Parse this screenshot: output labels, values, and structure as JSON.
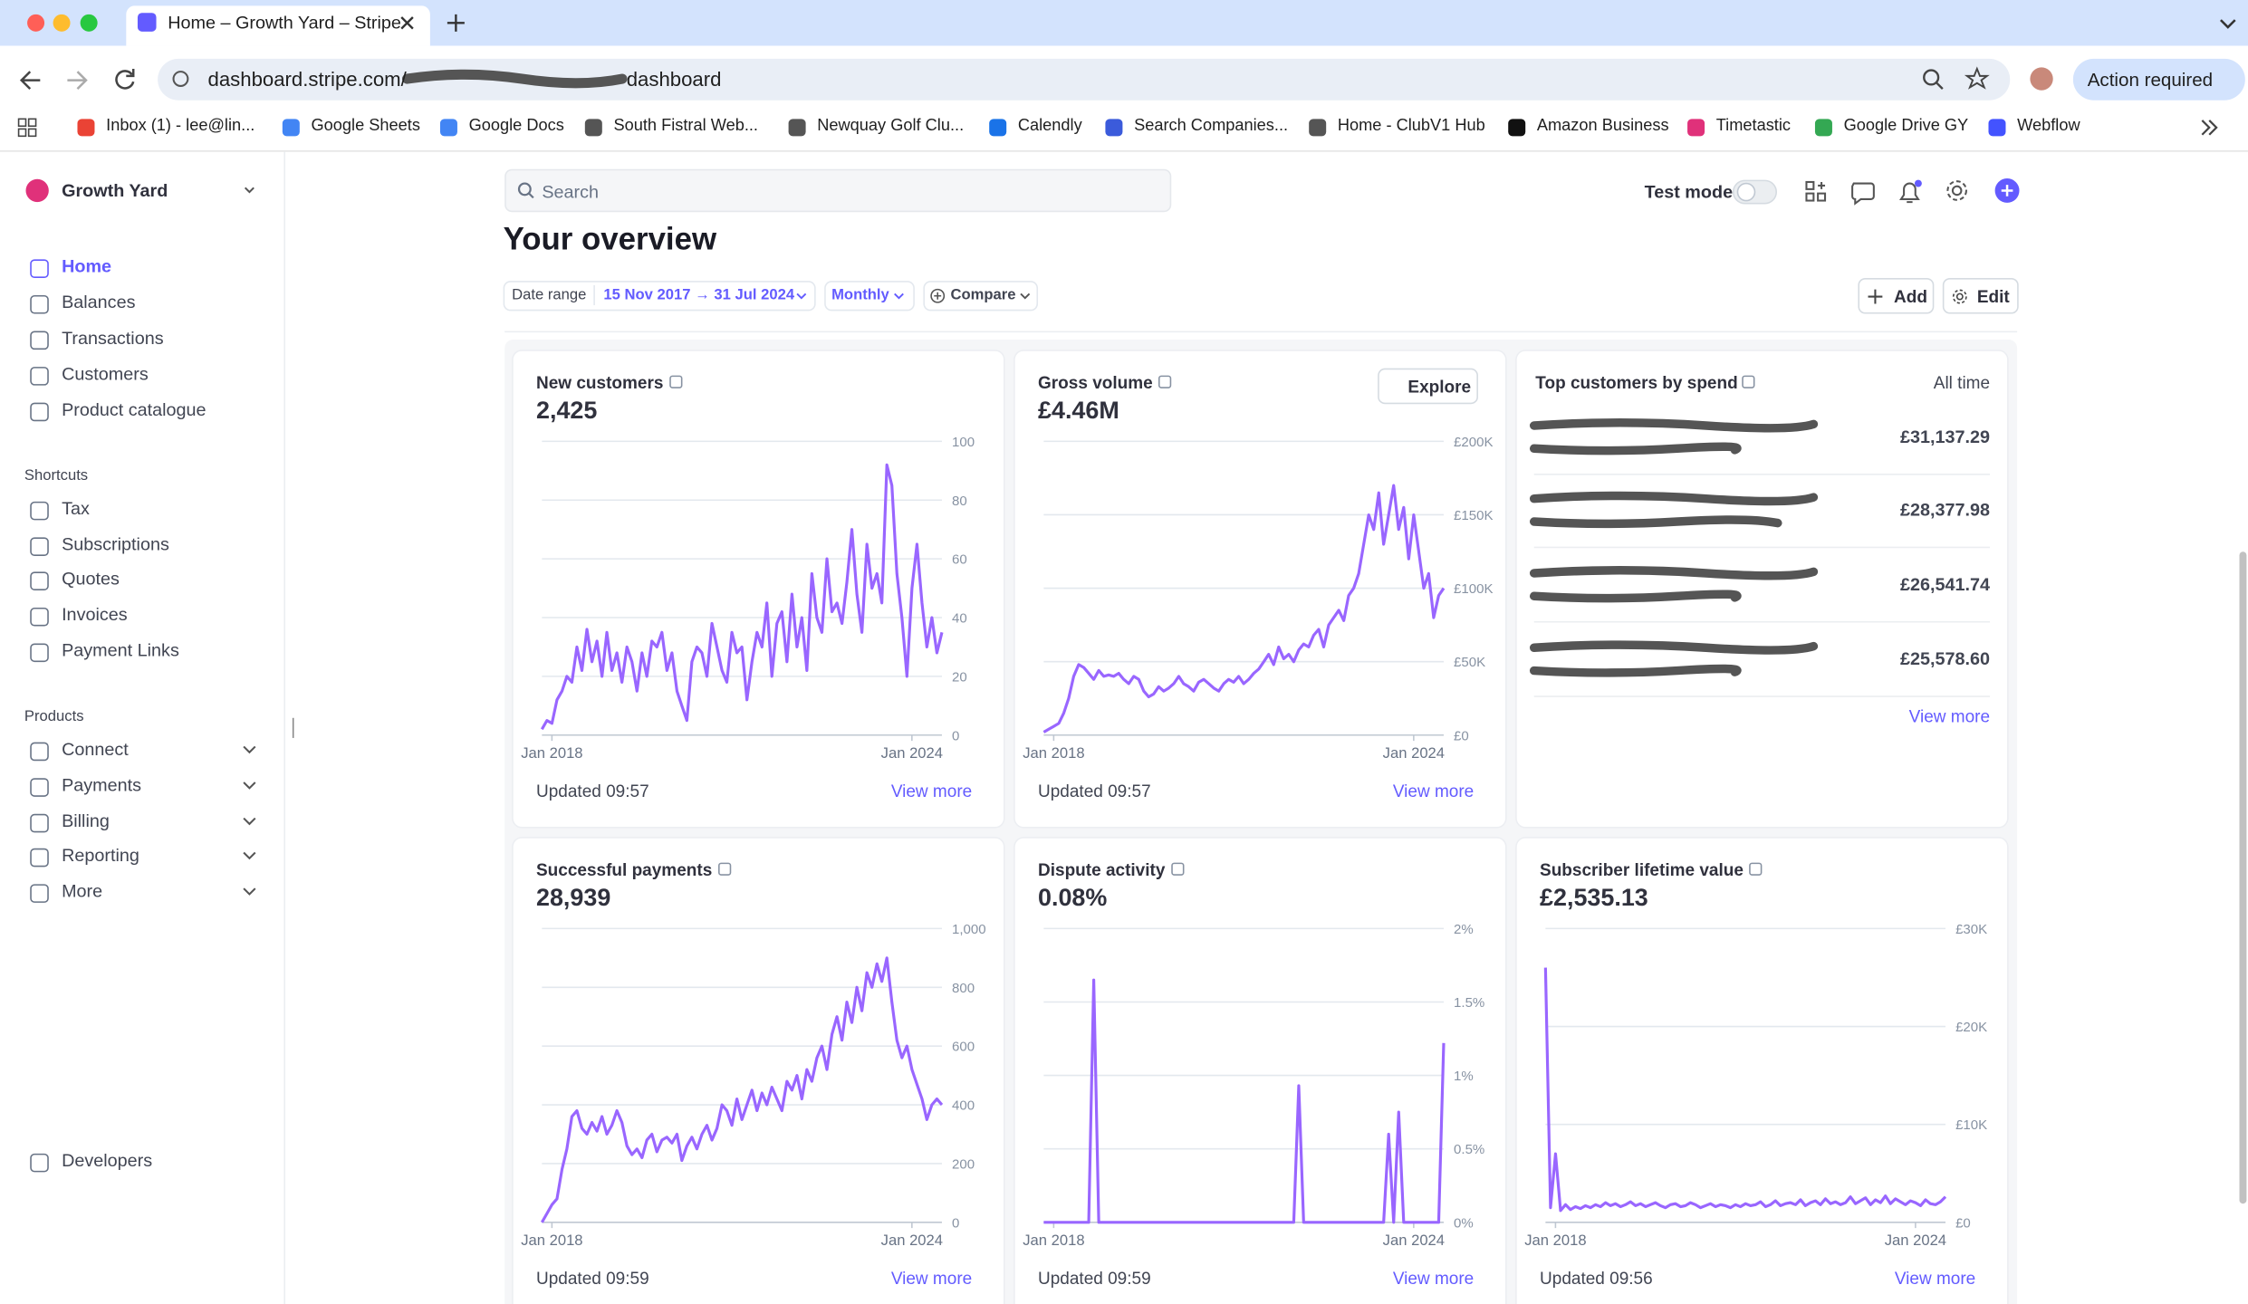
{
  "browser": {
    "tab_title": "Home – Growth Yard – Stripe",
    "url_host": "dashboard.stripe.com/",
    "url_path": "dashboard",
    "bookmarks": [
      "Inbox (1) - lee@lin...",
      "Google Sheets",
      "Google Docs",
      "South Fistral Web...",
      "Newquay Golf Clu...",
      "Calendly",
      "Search Companies...",
      "Home - ClubV1 Hub",
      "Amazon Business",
      "Timetastic",
      "Google Drive GY",
      "Webflow"
    ],
    "action": "Action required"
  },
  "sidebar": {
    "account": "Growth Yard",
    "nav": [
      "Home",
      "Balances",
      "Transactions",
      "Customers",
      "Product catalogue"
    ],
    "shortcuts_title": "Shortcuts",
    "shortcuts": [
      "Tax",
      "Subscriptions",
      "Quotes",
      "Invoices",
      "Payment Links"
    ],
    "products_title": "Products",
    "products": [
      "Connect",
      "Payments",
      "Billing",
      "Reporting",
      "More"
    ],
    "developers": "Developers"
  },
  "header": {
    "search": "Search",
    "test_mode": "Test mode",
    "title": "Your overview",
    "date_range_label": "Date range",
    "date_range": "15 Nov 2017 → 31 Jul 2024",
    "interval": "Monthly",
    "compare": "Compare",
    "add": "Add",
    "edit": "Edit"
  },
  "cards": [
    {
      "title": "New customers",
      "value": "2,425",
      "ylim": [
        0,
        100
      ],
      "yticks": [
        0,
        20,
        40,
        60,
        80,
        100
      ],
      "xticks": [
        {
          "value": 2,
          "label": "Jan 2018"
        },
        {
          "value": 74,
          "label": "Jan 2024"
        }
      ],
      "values": [
        2,
        5,
        4,
        12,
        15,
        20,
        18,
        30,
        22,
        36,
        25,
        32,
        20,
        35,
        22,
        28,
        18,
        30,
        25,
        15,
        28,
        20,
        32,
        30,
        35,
        22,
        28,
        15,
        10,
        5,
        25,
        30,
        28,
        20,
        38,
        30,
        22,
        18,
        35,
        28,
        30,
        12,
        25,
        35,
        30,
        45,
        20,
        38,
        42,
        25,
        48,
        30,
        40,
        22,
        55,
        40,
        35,
        60,
        42,
        45,
        38,
        52,
        70,
        48,
        35,
        65,
        50,
        55,
        45,
        92,
        85,
        55,
        40,
        20,
        50,
        65,
        45,
        30,
        40,
        28,
        35
      ],
      "updated": "Updated 09:57",
      "link": "View more"
    },
    {
      "title": "Gross volume",
      "value": "£4.46M",
      "explore": "Explore",
      "ylim": [
        0,
        200000
      ],
      "yticks": [
        {
          "value": 0,
          "label": "£0"
        },
        {
          "value": 50000,
          "label": "£50K"
        },
        {
          "value": 100000,
          "label": "£100K"
        },
        {
          "value": 150000,
          "label": "£150K"
        },
        {
          "value": 200000,
          "label": "£200K"
        }
      ],
      "xticks": [
        {
          "value": 2,
          "label": "Jan 2018"
        },
        {
          "value": 74,
          "label": "Jan 2024"
        }
      ],
      "values": [
        2000,
        4000,
        6000,
        8000,
        15000,
        25000,
        40000,
        48000,
        46000,
        42000,
        38000,
        44000,
        40000,
        41000,
        40000,
        42000,
        38000,
        35000,
        40000,
        38000,
        30000,
        26000,
        28000,
        33000,
        30000,
        32000,
        35000,
        40000,
        35000,
        33000,
        30000,
        36000,
        38000,
        35000,
        32000,
        30000,
        35000,
        38000,
        36000,
        40000,
        35000,
        38000,
        42000,
        45000,
        50000,
        55000,
        48000,
        60000,
        52000,
        55000,
        50000,
        58000,
        62000,
        60000,
        68000,
        72000,
        60000,
        75000,
        80000,
        85000,
        78000,
        95000,
        100000,
        110000,
        130000,
        150000,
        140000,
        165000,
        130000,
        150000,
        170000,
        140000,
        155000,
        120000,
        150000,
        125000,
        100000,
        110000,
        80000,
        95000,
        100000
      ],
      "updated": "Updated 09:57",
      "link": "View more"
    },
    {
      "title": "Successful payments",
      "value": "28,939",
      "ylim": [
        0,
        1000
      ],
      "yticks": [
        0,
        200,
        400,
        600,
        800,
        {
          "value": 1000,
          "label": "1,000"
        }
      ],
      "xticks": [
        {
          "value": 2,
          "label": "Jan 2018"
        },
        {
          "value": 74,
          "label": "Jan 2024"
        }
      ],
      "values": [
        0,
        30,
        60,
        80,
        180,
        250,
        360,
        380,
        320,
        300,
        340,
        310,
        360,
        300,
        330,
        380,
        340,
        260,
        230,
        250,
        220,
        280,
        300,
        240,
        280,
        290,
        270,
        300,
        210,
        260,
        290,
        250,
        300,
        330,
        280,
        320,
        400,
        380,
        330,
        420,
        350,
        400,
        450,
        380,
        440,
        400,
        460,
        420,
        380,
        480,
        450,
        500,
        420,
        520,
        480,
        560,
        600,
        520,
        640,
        700,
        620,
        750,
        680,
        800,
        720,
        850,
        800,
        880,
        820,
        900,
        750,
        620,
        560,
        600,
        520,
        470,
        420,
        350,
        400,
        420,
        400
      ],
      "updated": "Updated 09:59",
      "link": "View more"
    },
    {
      "title": "Dispute activity",
      "value": "0.08%",
      "ylim": [
        0,
        2
      ],
      "yticks": [
        {
          "value": 0,
          "label": "0%"
        },
        {
          "value": 0.5,
          "label": "0.5%"
        },
        {
          "value": 1,
          "label": "1%"
        },
        {
          "value": 1.5,
          "label": "1.5%"
        },
        {
          "value": 2,
          "label": "2%"
        }
      ],
      "xticks": [
        {
          "value": 2,
          "label": "Jan 2018"
        },
        {
          "value": 74,
          "label": "Jan 2024"
        }
      ],
      "values": [
        0,
        0,
        0,
        0,
        0,
        0,
        0,
        0,
        0,
        0,
        1.65,
        0,
        0,
        0,
        0,
        0,
        0,
        0,
        0,
        0,
        0,
        0,
        0,
        0,
        0,
        0,
        0,
        0,
        0,
        0,
        0,
        0,
        0,
        0,
        0,
        0,
        0,
        0,
        0,
        0,
        0,
        0,
        0,
        0,
        0,
        0,
        0,
        0,
        0,
        0,
        0,
        0.93,
        0,
        0,
        0,
        0,
        0,
        0,
        0,
        0,
        0,
        0,
        0,
        0,
        0,
        0,
        0,
        0,
        0,
        0.6,
        0,
        0.75,
        0,
        0,
        0,
        0,
        0,
        0,
        0,
        0,
        1.22
      ],
      "updated": "Updated 09:59",
      "link": "View more"
    },
    {
      "title": "Subscriber lifetime value",
      "value": "£2,535.13",
      "ylim": [
        0,
        30000
      ],
      "yticks": [
        {
          "value": 0,
          "label": "£0"
        },
        {
          "value": 10000,
          "label": "£10K"
        },
        {
          "value": 20000,
          "label": "£20K"
        },
        {
          "value": 30000,
          "label": "£30K"
        }
      ],
      "xticks": [
        {
          "value": 2,
          "label": "Jan 2018"
        },
        {
          "value": 74,
          "label": "Jan 2024"
        }
      ],
      "values": [
        26000,
        1500,
        7000,
        1200,
        1800,
        1300,
        1600,
        1400,
        1700,
        1500,
        1800,
        1600,
        2000,
        1700,
        1900,
        1600,
        1800,
        2100,
        1700,
        1900,
        1600,
        1800,
        2000,
        1700,
        1500,
        1800,
        1900,
        1600,
        1700,
        2000,
        1800,
        1500,
        1700,
        1900,
        1600,
        1800,
        1700,
        1500,
        1800,
        1600,
        1900,
        1700,
        1800,
        2100,
        1600,
        1800,
        2200,
        1700,
        1900,
        2000,
        1800,
        2300,
        1700,
        2000,
        2200,
        1800,
        2400,
        1900,
        2100,
        1800,
        2000,
        2600,
        1900,
        2200,
        2500,
        1800,
        2300,
        2000,
        2700,
        1900,
        2400,
        2100,
        1800,
        2200,
        2000,
        1700,
        2300,
        1900,
        1800,
        2100,
        2600
      ],
      "updated": "Updated 09:56",
      "link": "View more"
    }
  ],
  "top_customers": {
    "title": "Top customers by spend",
    "period": "All time",
    "amounts": [
      "£31,137.29",
      "£28,377.98",
      "£26,541.74",
      "£25,578.60"
    ],
    "link": "View more"
  }
}
